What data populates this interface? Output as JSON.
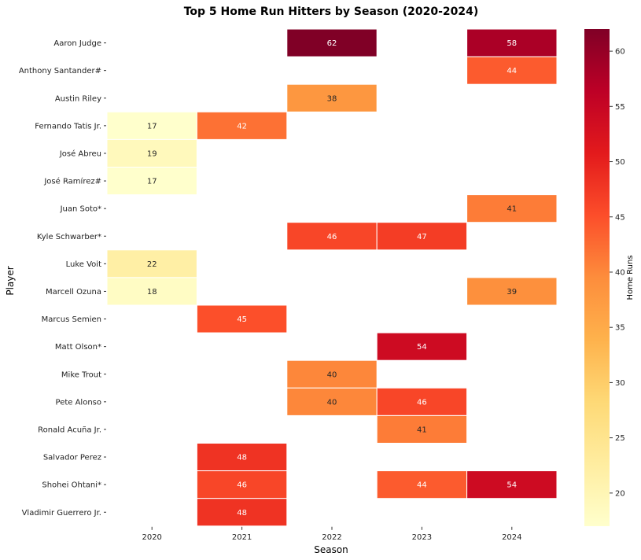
{
  "chart_data": {
    "type": "heatmap",
    "title": "Top 5 Home Run Hitters by Season (2020-2024)",
    "xlabel": "Season",
    "ylabel": "Player",
    "colorbar_label": "Home Runs",
    "colormap": "YlOrRd",
    "vmin": 17,
    "vmax": 62,
    "colorbar_ticks": [
      20,
      25,
      30,
      35,
      40,
      45,
      50,
      55,
      60
    ],
    "x": [
      "2020",
      "2021",
      "2022",
      "2023",
      "2024"
    ],
    "y": [
      "Aaron Judge",
      "Anthony Santander#",
      "Austin Riley",
      "Fernando Tatis Jr.",
      "José Abreu",
      "José Ramírez#",
      "Juan Soto*",
      "Kyle Schwarber*",
      "Luke Voit",
      "Marcell Ozuna",
      "Marcus Semien",
      "Matt Olson*",
      "Mike Trout",
      "Pete Alonso",
      "Ronald Acuña Jr.",
      "Salvador Perez",
      "Shohei Ohtani*",
      "Vladimir Guerrero Jr."
    ],
    "values": [
      [
        null,
        null,
        62,
        null,
        58
      ],
      [
        null,
        null,
        null,
        null,
        44
      ],
      [
        null,
        null,
        38,
        null,
        null
      ],
      [
        17,
        42,
        null,
        null,
        null
      ],
      [
        19,
        null,
        null,
        null,
        null
      ],
      [
        17,
        null,
        null,
        null,
        null
      ],
      [
        null,
        null,
        null,
        null,
        41
      ],
      [
        null,
        null,
        46,
        47,
        null
      ],
      [
        22,
        null,
        null,
        null,
        null
      ],
      [
        18,
        null,
        null,
        null,
        39
      ],
      [
        null,
        45,
        null,
        null,
        null
      ],
      [
        null,
        null,
        null,
        54,
        null
      ],
      [
        null,
        null,
        40,
        null,
        null
      ],
      [
        null,
        null,
        40,
        46,
        null
      ],
      [
        null,
        null,
        null,
        41,
        null
      ],
      [
        null,
        48,
        null,
        null,
        null
      ],
      [
        null,
        46,
        null,
        44,
        54
      ],
      [
        null,
        48,
        null,
        null,
        null
      ]
    ],
    "grid": false,
    "annotations": true
  }
}
